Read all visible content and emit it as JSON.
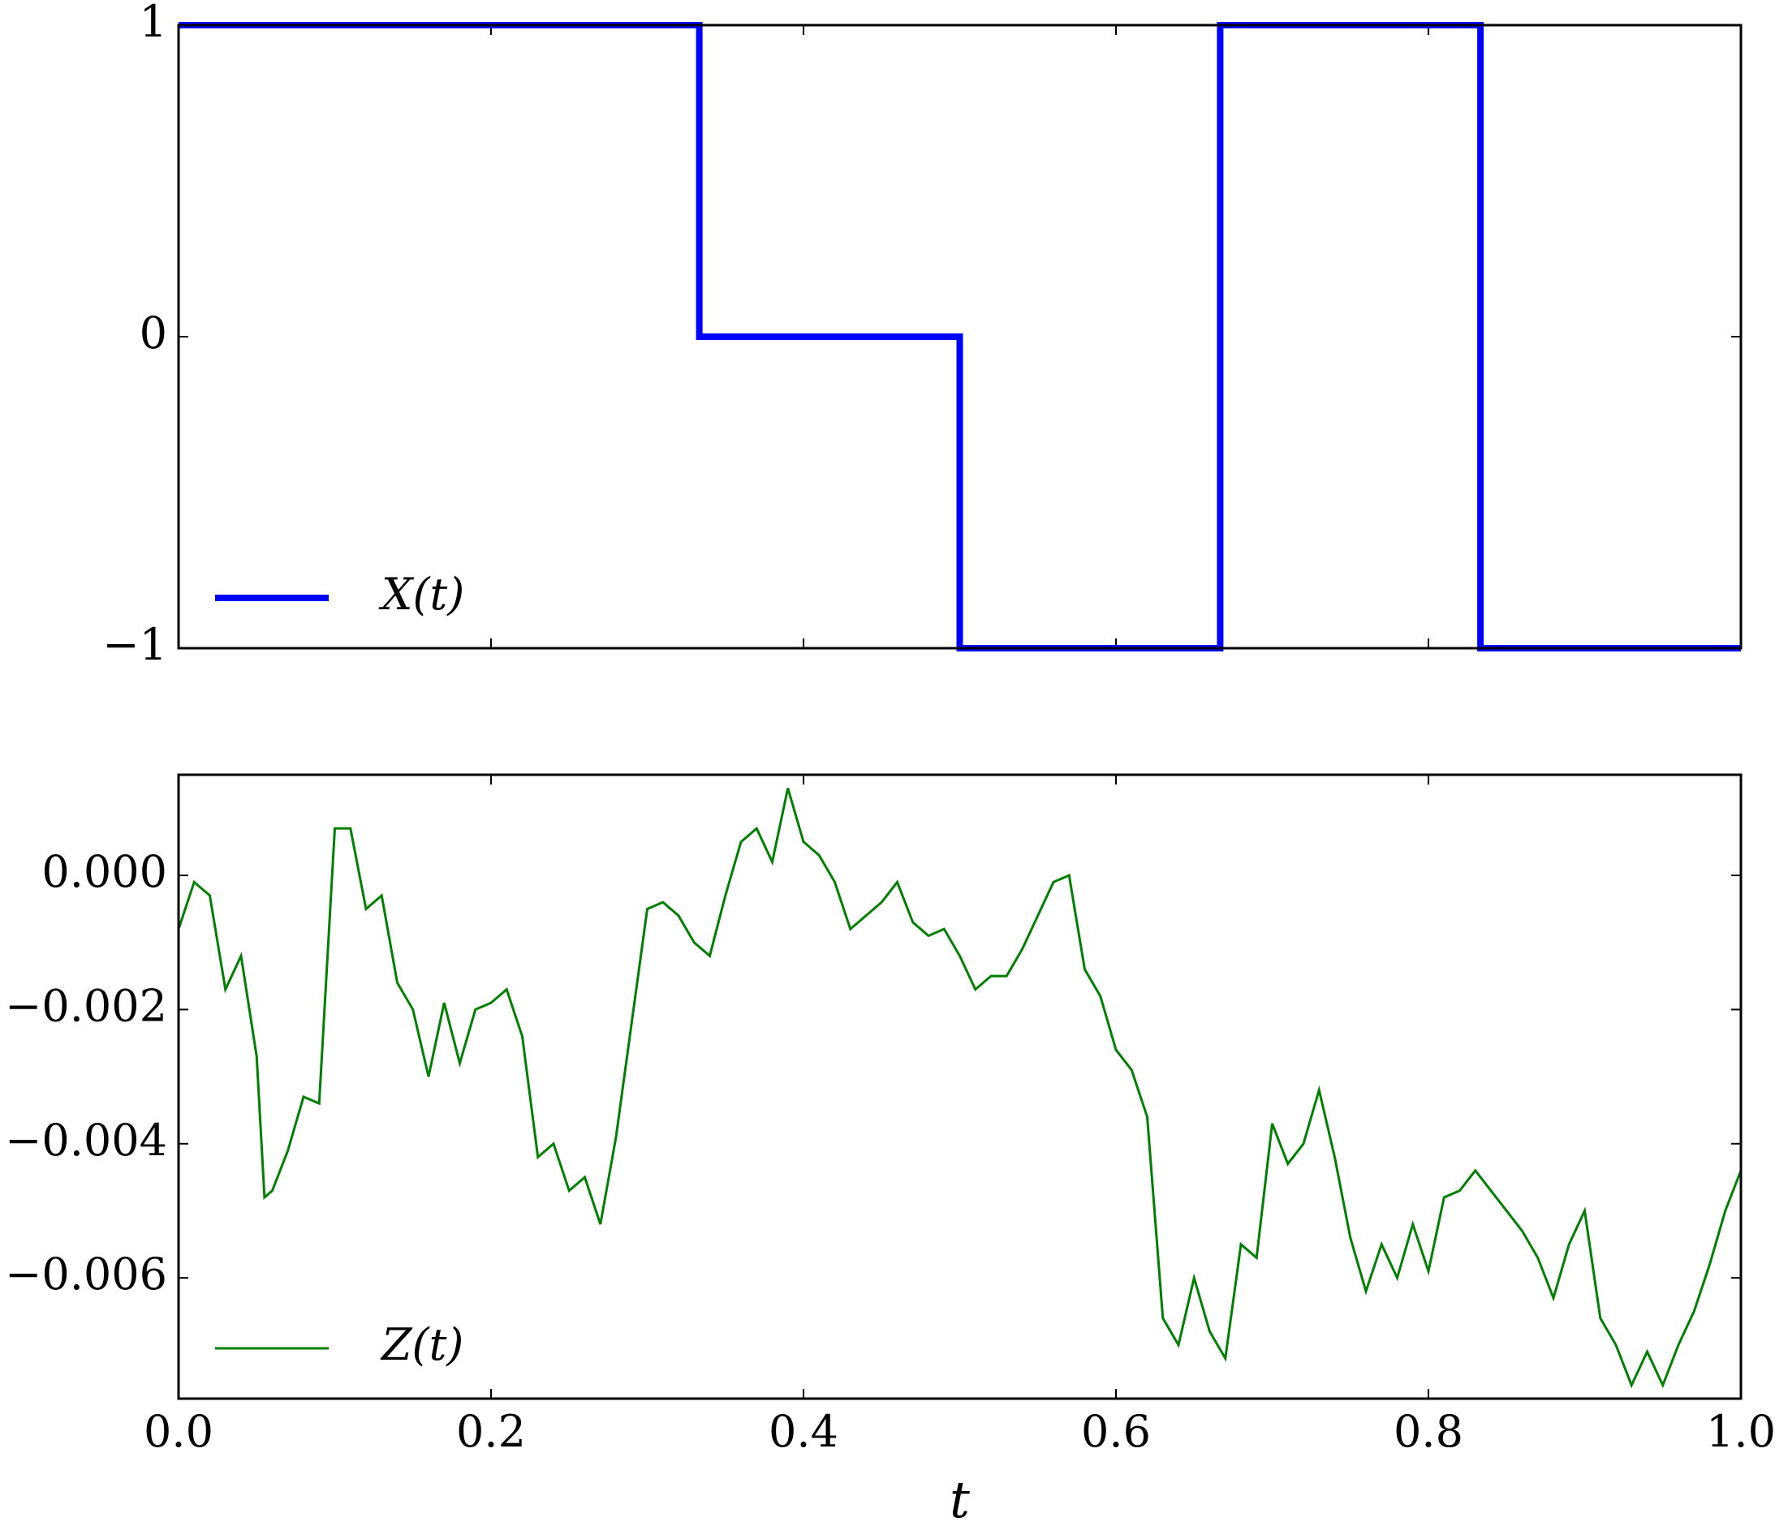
{
  "chart_data": [
    {
      "type": "line",
      "step": "post",
      "x": [
        0,
        0.3333,
        0.5,
        0.6667,
        0.8333,
        1.0
      ],
      "series": [
        {
          "name": "X(t)",
          "color": "#0000ff",
          "values": [
            1,
            0,
            -1,
            1,
            -1,
            -1
          ]
        }
      ],
      "xlim": [
        0,
        1
      ],
      "xticks": [
        0,
        0.2,
        0.4,
        0.6,
        0.8,
        1.0
      ],
      "xticklabels": false,
      "ylim": [
        -1,
        1
      ],
      "yticks": [
        {
          "value": -1,
          "label": "−1"
        },
        0,
        1
      ],
      "legend": "lower left",
      "grid": false
    },
    {
      "type": "line",
      "x": [
        0,
        0.01,
        0.02,
        0.03,
        0.04,
        0.05,
        0.055,
        0.06,
        0.07,
        0.08,
        0.09,
        0.1,
        0.11,
        0.12,
        0.13,
        0.14,
        0.15,
        0.16,
        0.17,
        0.18,
        0.19,
        0.2,
        0.21,
        0.22,
        0.23,
        0.24,
        0.25,
        0.26,
        0.27,
        0.28,
        0.29,
        0.3,
        0.31,
        0.32,
        0.33,
        0.34,
        0.35,
        0.36,
        0.37,
        0.38,
        0.39,
        0.4,
        0.41,
        0.42,
        0.43,
        0.44,
        0.45,
        0.46,
        0.47,
        0.48,
        0.49,
        0.5,
        0.51,
        0.52,
        0.53,
        0.54,
        0.55,
        0.56,
        0.57,
        0.58,
        0.59,
        0.6,
        0.61,
        0.62,
        0.63,
        0.64,
        0.65,
        0.66,
        0.67,
        0.68,
        0.69,
        0.7,
        0.71,
        0.72,
        0.73,
        0.74,
        0.75,
        0.76,
        0.77,
        0.78,
        0.79,
        0.8,
        0.81,
        0.82,
        0.83,
        0.84,
        0.85,
        0.86,
        0.87,
        0.88,
        0.89,
        0.9,
        0.91,
        0.92,
        0.93,
        0.94,
        0.95,
        0.96,
        0.97,
        0.98,
        0.99,
        1.0
      ],
      "series": [
        {
          "name": "Z(t)",
          "color": "#008000",
          "values": [
            -0.0008,
            -0.0001,
            -0.0003,
            -0.0017,
            -0.0012,
            -0.0027,
            -0.0048,
            -0.0047,
            -0.0041,
            -0.0033,
            -0.0034,
            0.0007,
            0.0007,
            -0.0005,
            -0.0003,
            -0.0016,
            -0.002,
            -0.003,
            -0.0019,
            -0.0028,
            -0.002,
            -0.0019,
            -0.0017,
            -0.0024,
            -0.0042,
            -0.004,
            -0.0047,
            -0.0045,
            -0.0052,
            -0.0039,
            -0.0022,
            -0.0005,
            -0.0004,
            -0.0006,
            -0.001,
            -0.0012,
            -0.0003,
            0.0005,
            0.0007,
            0.0002,
            0.0013,
            0.0005,
            0.0003,
            -0.0001,
            -0.0008,
            -0.0006,
            -0.0004,
            -0.0001,
            -0.0007,
            -0.0009,
            -0.0008,
            -0.0012,
            -0.0017,
            -0.0015,
            -0.0015,
            -0.0011,
            -0.0006,
            -0.0001,
            0.0,
            -0.0014,
            -0.0018,
            -0.0026,
            -0.0029,
            -0.0036,
            -0.0066,
            -0.007,
            -0.006,
            -0.0068,
            -0.0072,
            -0.0055,
            -0.0057,
            -0.0037,
            -0.0043,
            -0.004,
            -0.0032,
            -0.0042,
            -0.0054,
            -0.0062,
            -0.0055,
            -0.006,
            -0.0052,
            -0.0059,
            -0.0048,
            -0.0047,
            -0.0044,
            -0.0047,
            -0.005,
            -0.0053,
            -0.0057,
            -0.0063,
            -0.0055,
            -0.005,
            -0.0066,
            -0.007,
            -0.0076,
            -0.0071,
            -0.0076,
            -0.007,
            -0.0065,
            -0.0058,
            -0.005,
            -0.0044
          ]
        }
      ],
      "xlim": [
        0,
        1
      ],
      "xticks": [
        {
          "value": 0,
          "label": "0.0"
        },
        0.2,
        0.4,
        0.6,
        0.8,
        {
          "value": 1.0,
          "label": "1.0"
        }
      ],
      "xlabel": "t",
      "ylim": [
        -0.0078,
        0.0015
      ],
      "yticks": [
        {
          "value": -0.006,
          "label": "−0.006"
        },
        {
          "value": -0.004,
          "label": "−0.004"
        },
        {
          "value": -0.002,
          "label": "−0.002"
        },
        {
          "value": 0,
          "label": "0.000"
        }
      ],
      "legend": "lower left",
      "grid": false
    }
  ]
}
